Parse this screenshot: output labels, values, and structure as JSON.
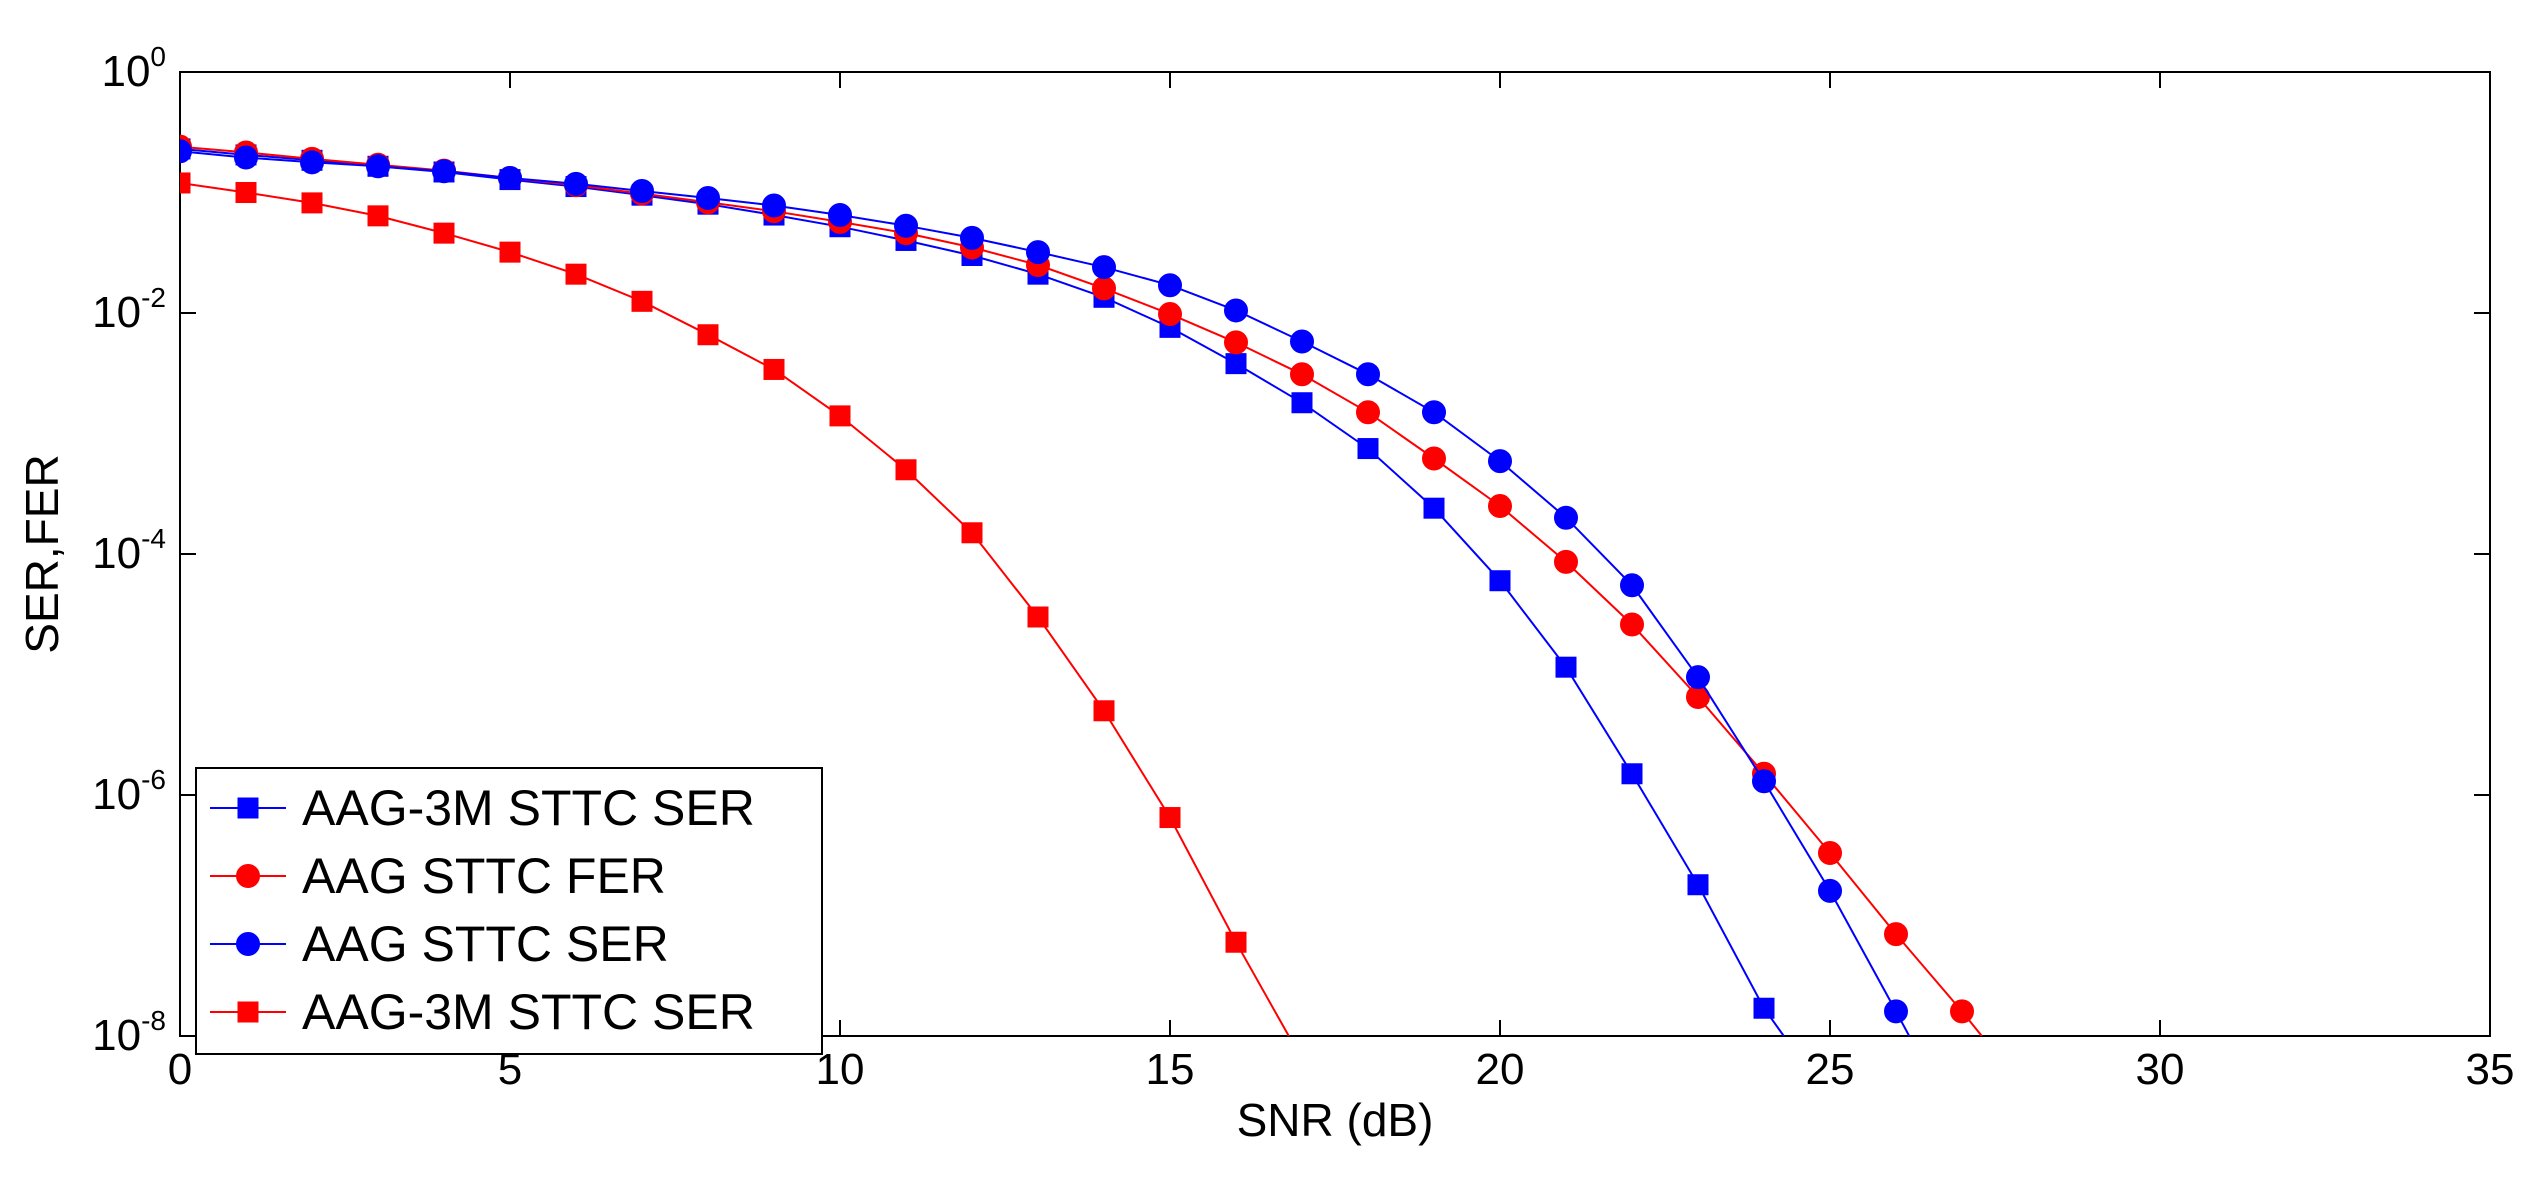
{
  "chart_data": {
    "type": "line",
    "title": "",
    "xlabel": "SNR (dB)",
    "ylabel": "SER,FER",
    "xlim": [
      0,
      35
    ],
    "ylim": [
      1e-08,
      1
    ],
    "yscale": "log",
    "xticks": [
      0,
      5,
      10,
      15,
      20,
      25,
      30,
      35
    ],
    "yticks": [
      {
        "value": 1,
        "base": "10",
        "exp": "0"
      },
      {
        "value": 0.01,
        "base": "10",
        "exp": "-2"
      },
      {
        "value": 0.0001,
        "base": "10",
        "exp": "-4"
      },
      {
        "value": 1e-06,
        "base": "10",
        "exp": "-6"
      },
      {
        "value": 1e-08,
        "base": "10",
        "exp": "-8"
      }
    ],
    "grid": false,
    "legend_position": "bottom-left",
    "series": [
      {
        "name": "AAG-3M STTC SER",
        "color": "#0000ff",
        "marker": "square",
        "x": [
          0,
          1,
          2,
          3,
          4,
          5,
          6,
          7,
          8,
          9,
          10,
          11,
          12,
          13,
          14,
          15,
          16,
          17,
          18,
          19,
          20,
          21,
          22,
          23,
          24,
          24.3
        ],
        "y": [
          0.23,
          0.205,
          0.185,
          0.165,
          0.148,
          0.128,
          0.112,
          0.095,
          0.08,
          0.065,
          0.052,
          0.04,
          0.03,
          0.021,
          0.0135,
          0.0076,
          0.0038,
          0.0018,
          0.00075,
          0.00024,
          6e-05,
          1.15e-05,
          1.5e-06,
          1.8e-07,
          1.7e-08,
          1e-08
        ]
      },
      {
        "name": "AAG STTC FER",
        "color": "#ff0000",
        "marker": "circle",
        "x": [
          0,
          1,
          2,
          3,
          4,
          5,
          6,
          7,
          8,
          9,
          10,
          11,
          12,
          13,
          14,
          15,
          16,
          17,
          18,
          19,
          20,
          21,
          22,
          23,
          24,
          25,
          26,
          27,
          27.3
        ],
        "y": [
          0.24,
          0.215,
          0.19,
          0.17,
          0.152,
          0.132,
          0.115,
          0.098,
          0.083,
          0.07,
          0.057,
          0.046,
          0.035,
          0.025,
          0.016,
          0.0098,
          0.0057,
          0.0031,
          0.0015,
          0.00062,
          0.00025,
          8.6e-05,
          2.6e-05,
          6.5e-06,
          1.5e-06,
          3.3e-07,
          7e-08,
          1.6e-08,
          1e-08
        ]
      },
      {
        "name": "AAG STTC SER",
        "color": "#0000ff",
        "marker": "circle",
        "x": [
          0,
          1,
          2,
          3,
          4,
          5,
          6,
          7,
          8,
          9,
          10,
          11,
          12,
          13,
          14,
          15,
          16,
          17,
          18,
          19,
          20,
          21,
          22,
          23,
          24,
          25,
          26,
          26.2
        ],
        "y": [
          0.22,
          0.195,
          0.178,
          0.165,
          0.15,
          0.132,
          0.118,
          0.103,
          0.09,
          0.078,
          0.065,
          0.053,
          0.042,
          0.032,
          0.024,
          0.017,
          0.0105,
          0.0058,
          0.0031,
          0.0015,
          0.00059,
          0.0002,
          5.5e-05,
          9.5e-06,
          1.3e-06,
          1.6e-07,
          1.6e-08,
          1e-08
        ]
      },
      {
        "name": "AAG-3M STTC SER",
        "color": "#ff0000",
        "marker": "square",
        "x": [
          0,
          1,
          2,
          3,
          4,
          5,
          6,
          7,
          8,
          9,
          10,
          11,
          12,
          13,
          14,
          15,
          16,
          16.8
        ],
        "y": [
          0.12,
          0.1,
          0.082,
          0.064,
          0.046,
          0.032,
          0.021,
          0.0125,
          0.0066,
          0.0034,
          0.0014,
          0.0005,
          0.00015,
          3e-05,
          5e-06,
          6.5e-07,
          6e-08,
          1e-08
        ]
      }
    ],
    "marker_counts": [
      25,
      28,
      27,
      17
    ]
  }
}
